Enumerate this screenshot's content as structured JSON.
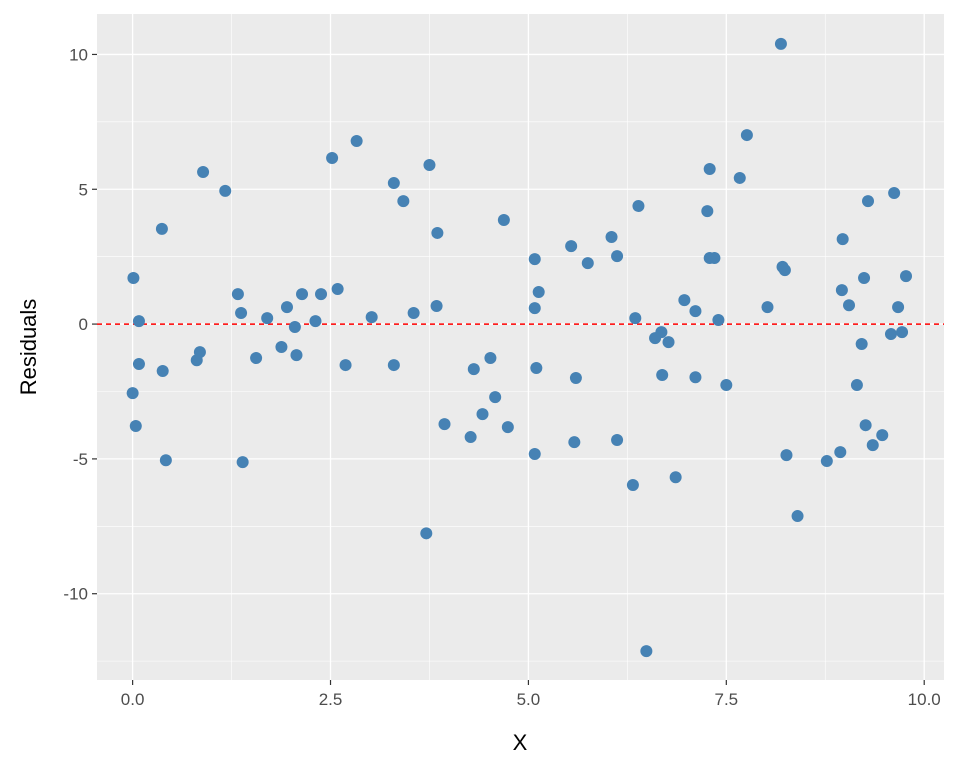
{
  "chart_data": {
    "type": "scatter",
    "title": "",
    "xlabel": "X",
    "ylabel": "Residuals",
    "xlim": [
      -0.45,
      10.25
    ],
    "ylim": [
      -13.2,
      11.5
    ],
    "x_ticks": [
      0.0,
      2.5,
      5.0,
      7.5,
      10.0
    ],
    "x_tick_labels": [
      "0.0",
      "2.5",
      "5.0",
      "7.5",
      "10.0"
    ],
    "y_ticks": [
      -10,
      -5,
      0,
      5,
      10
    ],
    "y_tick_labels": [
      "-10",
      "-5",
      "0",
      "5",
      "10"
    ],
    "grid": true,
    "point_color": "#4682B4",
    "panel_background": "#EBEBEB",
    "reference_line": {
      "y": 0,
      "color": "#FF0000",
      "style": "dashed"
    },
    "x": [
      0.01,
      0,
      0.04,
      0.08,
      0.08,
      0.37,
      0.38,
      0.42,
      0.81,
      0.85,
      0.89,
      1.17,
      1.33,
      1.37,
      1.39,
      1.56,
      1.7,
      1.88,
      1.95,
      2.05,
      2.07,
      2.14,
      2.31,
      2.38,
      2.52,
      2.59,
      2.69,
      2.83,
      3.02,
      3.3,
      3.3,
      3.42,
      3.55,
      3.71,
      3.75,
      3.84,
      3.85,
      3.94,
      4.27,
      4.31,
      4.42,
      4.52,
      4.58,
      4.69,
      4.74,
      5.08,
      5.08,
      5.08,
      5.1,
      5.13,
      5.54,
      5.58,
      5.6,
      5.75,
      6.05,
      6.12,
      6.12,
      6.32,
      6.35,
      6.39,
      6.49,
      6.6,
      6.68,
      6.69,
      6.77,
      6.86,
      6.97,
      7.11,
      7.11,
      7.26,
      7.29,
      7.29,
      7.35,
      7.4,
      7.5,
      7.67,
      7.76,
      8.02,
      8.19,
      8.21,
      8.24,
      8.26,
      8.4,
      8.77,
      8.94,
      8.96,
      8.97,
      9.05,
      9.15,
      9.21,
      9.24,
      9.26,
      9.29,
      9.35,
      9.47,
      9.58,
      9.62,
      9.67,
      9.72,
      9.77
    ],
    "y": [
      1.71,
      -2.56,
      -3.78,
      0.11,
      -1.48,
      3.53,
      -1.74,
      -5.05,
      -1.34,
      -1.04,
      5.64,
      4.94,
      1.11,
      0.41,
      -5.12,
      -1.26,
      0.22,
      -0.85,
      0.63,
      -0.11,
      -1.15,
      1.11,
      0.11,
      1.11,
      6.16,
      1.3,
      -1.52,
      6.79,
      0.26,
      5.23,
      -1.52,
      4.56,
      0.41,
      -7.76,
      5.9,
      0.67,
      3.38,
      -3.71,
      -4.19,
      -1.67,
      -3.34,
      -1.26,
      -2.71,
      3.86,
      -3.82,
      2.41,
      0.59,
      -4.82,
      -1.63,
      1.19,
      2.89,
      -4.38,
      -2.0,
      2.26,
      3.23,
      2.52,
      -4.3,
      -5.97,
      0.22,
      4.38,
      -12.13,
      -0.52,
      -0.3,
      -1.89,
      -0.67,
      -5.68,
      0.89,
      -1.97,
      0.48,
      4.19,
      5.75,
      2.45,
      2.45,
      0.15,
      -2.26,
      5.42,
      7.01,
      0.63,
      10.39,
      2.12,
      2.0,
      -4.86,
      -7.12,
      -5.08,
      -4.75,
      1.26,
      3.15,
      0.7,
      -2.26,
      -0.74,
      1.71,
      -3.75,
      4.56,
      -4.49,
      -4.12,
      -0.37,
      4.86,
      0.63,
      -0.3,
      1.78
    ]
  }
}
